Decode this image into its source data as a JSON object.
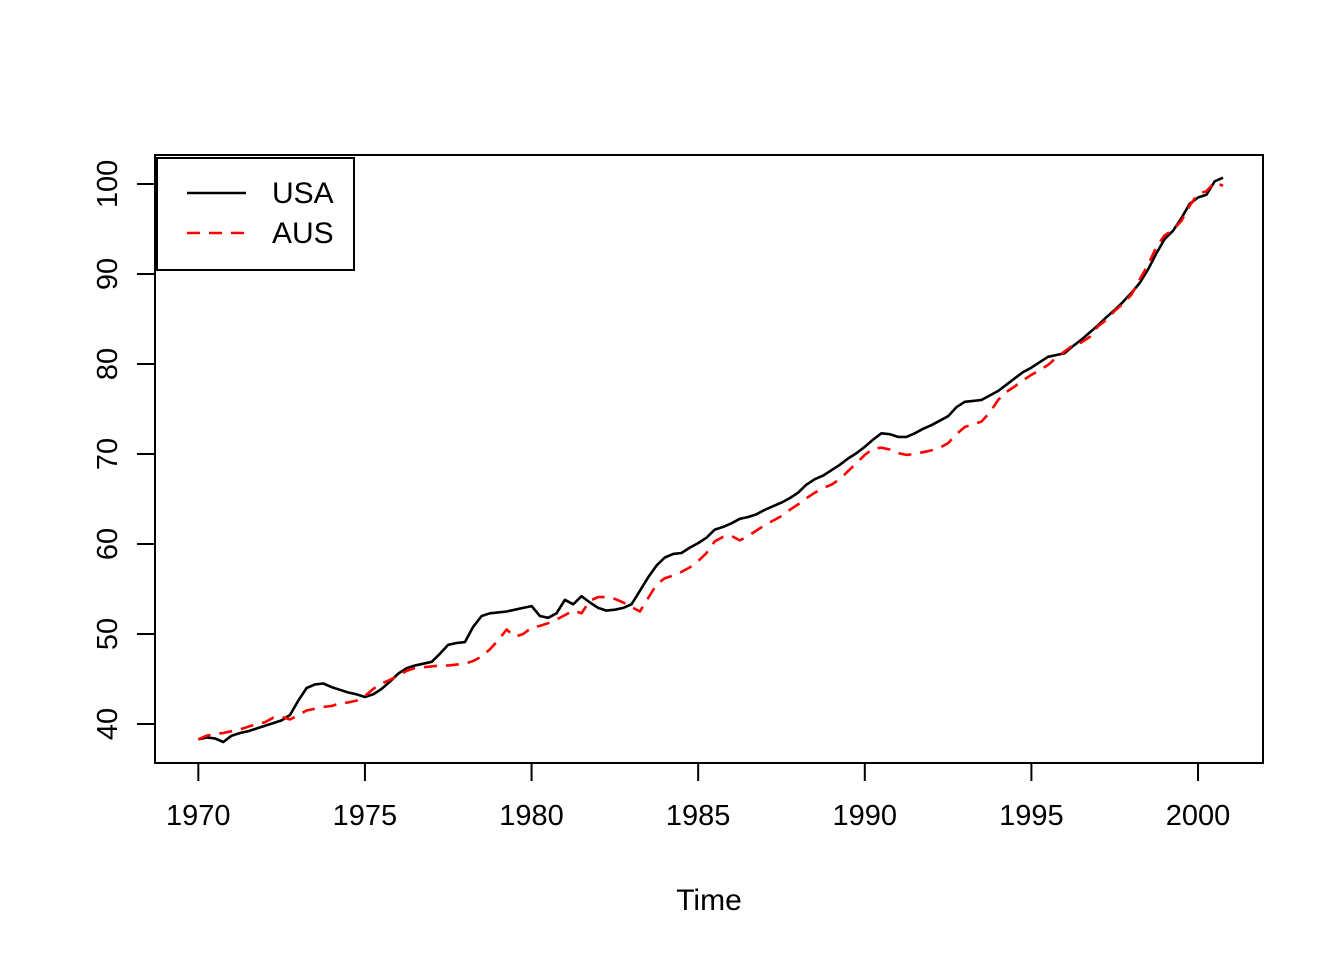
{
  "chart_data": {
    "type": "line",
    "title": "",
    "xlabel": "Time",
    "ylabel": "",
    "x_start": 1970,
    "x_step": 0.25,
    "xlim": [
      1968.7,
      2001.95
    ],
    "ylim": [
      35.67,
      103.22
    ],
    "x_ticks": [
      1970,
      1975,
      1980,
      1985,
      1990,
      1995,
      2000
    ],
    "y_ticks": [
      40,
      50,
      60,
      70,
      80,
      90,
      100
    ],
    "grid": false,
    "axis_color": "#000000",
    "background_color": "#ffffff",
    "legend": {
      "position": "topleft",
      "entries": [
        {
          "label": "USA",
          "color": "#000000",
          "dashed": false
        },
        {
          "label": "AUS",
          "color": "#ff0000",
          "dashed": true
        }
      ]
    },
    "series": [
      {
        "name": "USA",
        "color": "#000000",
        "line_style": "solid",
        "values": [
          38.3,
          38.5,
          38.4,
          38.0,
          38.7,
          39.0,
          39.2,
          39.5,
          39.8,
          40.1,
          40.4,
          41.0,
          42.6,
          44.0,
          44.4,
          44.5,
          44.1,
          43.8,
          43.5,
          43.3,
          43.0,
          43.3,
          43.9,
          44.7,
          45.6,
          46.2,
          46.5,
          46.7,
          46.9,
          47.8,
          48.8,
          49.0,
          49.1,
          50.8,
          52.0,
          52.3,
          52.4,
          52.5,
          52.7,
          52.9,
          53.1,
          52.0,
          51.8,
          52.3,
          53.8,
          53.3,
          54.2,
          53.5,
          52.9,
          52.6,
          52.7,
          52.9,
          53.3,
          54.8,
          56.3,
          57.6,
          58.5,
          58.9,
          59.0,
          59.6,
          60.1,
          60.7,
          61.6,
          61.9,
          62.3,
          62.8,
          63.0,
          63.3,
          63.8,
          64.2,
          64.6,
          65.1,
          65.7,
          66.6,
          67.2,
          67.6,
          68.2,
          68.8,
          69.5,
          70.1,
          70.8,
          71.6,
          72.3,
          72.2,
          71.9,
          71.9,
          72.3,
          72.8,
          73.2,
          73.7,
          74.2,
          75.2,
          75.8,
          75.9,
          76.0,
          76.5,
          77.0,
          77.7,
          78.4,
          79.1,
          79.6,
          80.2,
          80.8,
          81.0,
          81.2,
          82.0,
          82.7,
          83.5,
          84.3,
          85.2,
          86.0,
          86.9,
          87.9,
          89.0,
          90.5,
          92.3,
          93.9,
          94.8,
          96.2,
          97.8,
          98.5,
          98.8,
          100.3,
          100.7
        ]
      },
      {
        "name": "AUS",
        "color": "#ff0000",
        "line_style": "dashed",
        "values": [
          38.3,
          38.7,
          38.9,
          39.0,
          39.2,
          39.4,
          39.7,
          40.0,
          40.2,
          40.7,
          40.8,
          40.5,
          41.0,
          41.5,
          41.7,
          41.9,
          42.0,
          42.3,
          42.4,
          42.6,
          43.1,
          43.9,
          44.5,
          44.9,
          45.4,
          45.9,
          46.2,
          46.3,
          46.4,
          46.5,
          46.5,
          46.6,
          46.7,
          47.0,
          47.5,
          48.3,
          49.3,
          50.5,
          49.7,
          50.0,
          50.7,
          50.9,
          51.2,
          51.6,
          52.1,
          52.6,
          52.3,
          53.7,
          54.1,
          54.1,
          53.9,
          53.5,
          53.0,
          52.5,
          54.0,
          55.5,
          56.2,
          56.5,
          56.9,
          57.4,
          58.1,
          59.0,
          60.3,
          60.8,
          60.9,
          60.4,
          60.9,
          61.5,
          62.1,
          62.6,
          63.1,
          63.8,
          64.4,
          65.1,
          65.7,
          66.2,
          66.6,
          67.2,
          68.1,
          69.0,
          69.9,
          70.6,
          70.7,
          70.5,
          70.1,
          69.9,
          70.0,
          70.2,
          70.4,
          70.7,
          71.2,
          72.2,
          73.0,
          73.3,
          73.6,
          74.6,
          76.0,
          76.9,
          77.5,
          78.2,
          78.8,
          79.3,
          79.9,
          80.7,
          81.4,
          82.1,
          82.4,
          83.0,
          84.2,
          84.9,
          85.9,
          86.7,
          87.7,
          89.4,
          91.0,
          93.0,
          94.3,
          94.9,
          95.9,
          97.6,
          98.9,
          99.2,
          100.2,
          99.8
        ]
      }
    ]
  }
}
